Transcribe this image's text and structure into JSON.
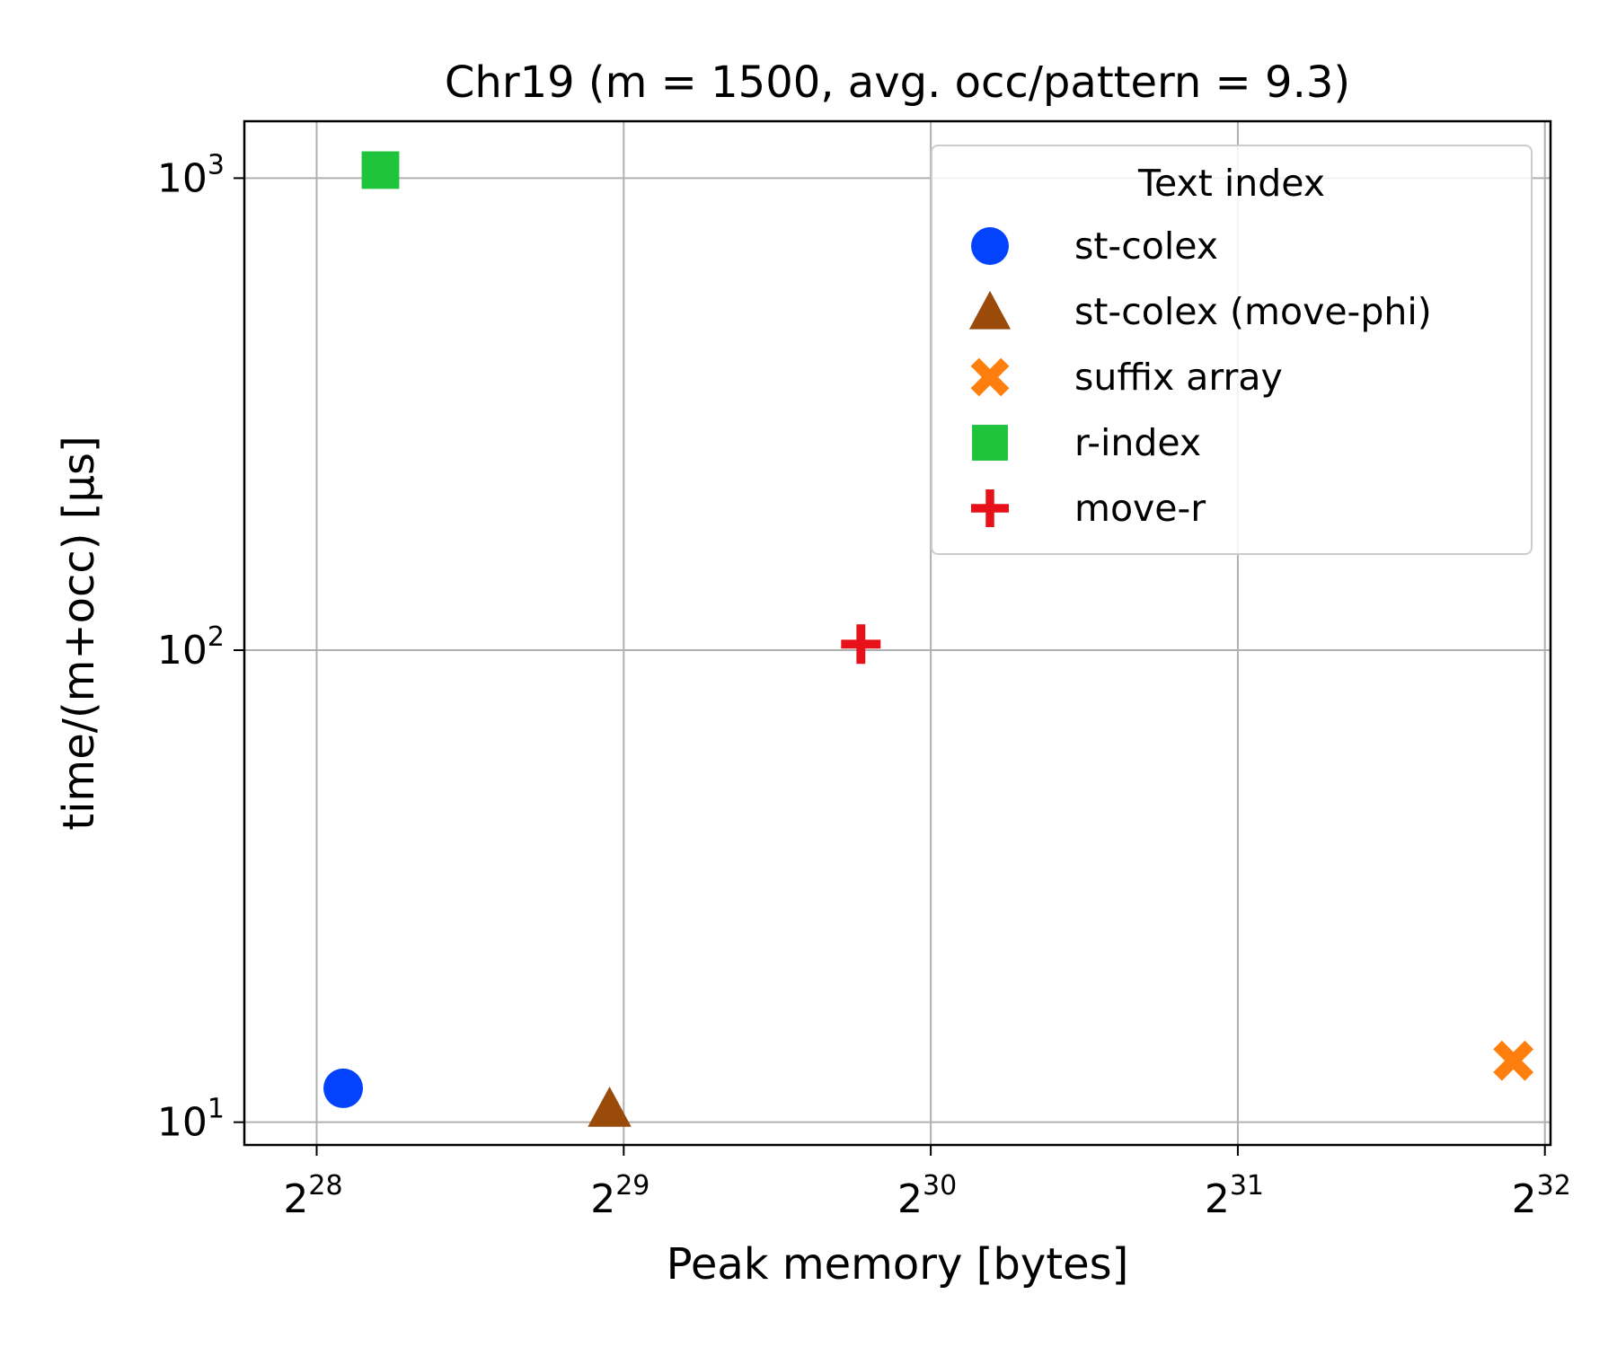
{
  "chart_data": {
    "type": "scatter",
    "title": "Chr19 (m = 1500,  avg. occ/pattern = 9.3)",
    "xlabel": "Peak memory [bytes]",
    "ylabel": "time/(m+occ) [µs]",
    "x_scale": "log2",
    "y_scale": "log10",
    "xlim": [
      228000000,
      4350000000
    ],
    "ylim": [
      8.95,
      1320
    ],
    "x_ticks": [
      {
        "base": "2",
        "exp": "28",
        "value": 268435456
      },
      {
        "base": "2",
        "exp": "29",
        "value": 536870912
      },
      {
        "base": "2",
        "exp": "30",
        "value": 1073741824
      },
      {
        "base": "2",
        "exp": "31",
        "value": 2147483648
      },
      {
        "base": "2",
        "exp": "32",
        "value": 4294967296
      }
    ],
    "y_ticks": [
      {
        "base": "10",
        "exp": "1",
        "value": 10
      },
      {
        "base": "10",
        "exp": "2",
        "value": 100
      },
      {
        "base": "10",
        "exp": "3",
        "value": 1000
      }
    ],
    "grid": true,
    "legend": {
      "title": "Text index",
      "placement": "top-right"
    },
    "series": [
      {
        "name": "st-colex",
        "marker": "circle",
        "color": "#0343fe",
        "x": [
          285000000
        ],
        "y": [
          11.8
        ]
      },
      {
        "name": "st-colex (move-phi)",
        "marker": "triangle",
        "color": "#9a4b0a",
        "x": [
          520000000
        ],
        "y": [
          10.7
        ]
      },
      {
        "name": "suffix array",
        "marker": "x",
        "color": "#ff7f0e",
        "x": [
          4000000000
        ],
        "y": [
          13.5
        ]
      },
      {
        "name": "r-index",
        "marker": "square",
        "color": "#1ec43c",
        "x": [
          310000000
        ],
        "y": [
          1040
        ]
      },
      {
        "name": "move-r",
        "marker": "plus",
        "color": "#e8111a",
        "x": [
          917000000
        ],
        "y": [
          103
        ]
      }
    ]
  }
}
